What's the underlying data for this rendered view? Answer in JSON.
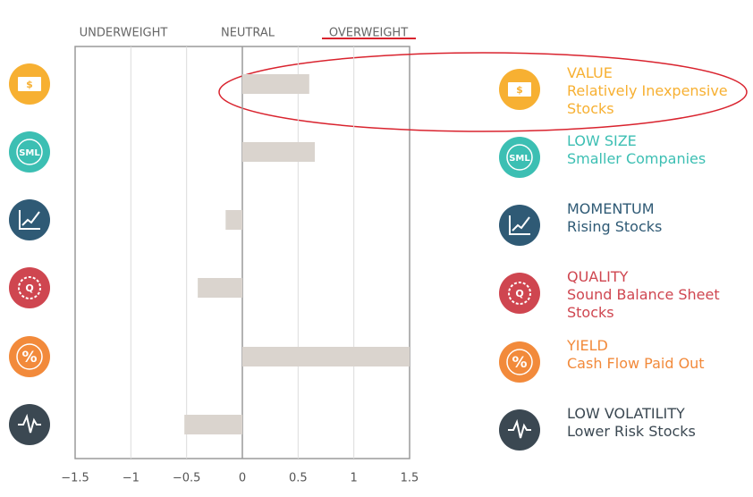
{
  "chart_data": {
    "type": "bar",
    "orientation": "horizontal",
    "header_labels": [
      "UNDERWEIGHT",
      "NEUTRAL",
      "OVERWEIGHT"
    ],
    "categories": [
      "VALUE",
      "LOW SIZE",
      "MOMENTUM",
      "QUALITY",
      "YIELD",
      "LOW VOLATILITY"
    ],
    "descriptions": [
      "Relatively Inexpensive Stocks",
      "Smaller Companies",
      "Rising Stocks",
      "Sound Balance Sheet Stocks",
      "Cash Flow Paid Out",
      "Lower Risk Stocks"
    ],
    "icon_labels": [
      "$",
      "SML",
      null,
      "Q",
      "%",
      null
    ],
    "colors": [
      "#f7b032",
      "#3cbfb3",
      "#2f5a75",
      "#cf4650",
      "#f28a3b",
      "#3b4852"
    ],
    "values": [
      0.6,
      0.65,
      -0.15,
      -0.4,
      1.5,
      -0.52
    ],
    "color": "#dad4ce",
    "xlim": [
      -1.5,
      1.5
    ],
    "xticks": [
      {
        "value": -1.5,
        "label": "−1.5"
      },
      {
        "value": -1,
        "label": "−1"
      },
      {
        "value": -0.5,
        "label": "−0.5"
      },
      0,
      0.5,
      1,
      1.5
    ],
    "grid": true
  }
}
